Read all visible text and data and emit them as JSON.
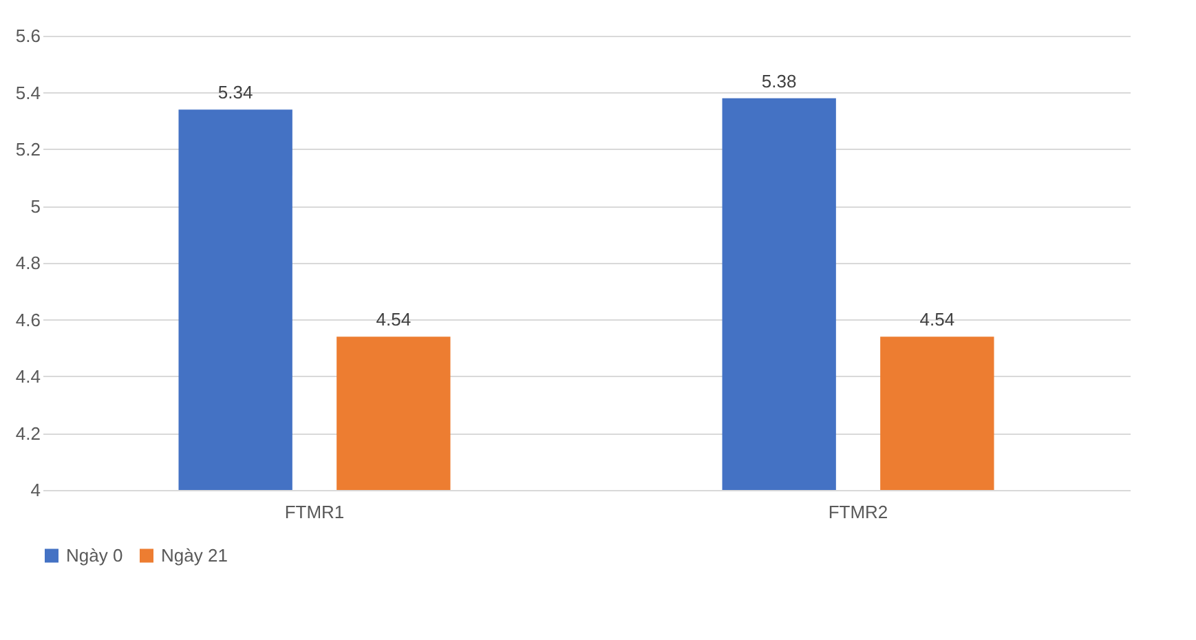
{
  "chart_data": {
    "type": "bar",
    "categories": [
      "FTMR1",
      "FTMR2"
    ],
    "series": [
      {
        "name": "Ngày 0",
        "color": "#4472c4",
        "values": [
          5.34,
          5.38
        ]
      },
      {
        "name": "Ngày 21",
        "color": "#ed7d31",
        "values": [
          4.54,
          4.54
        ]
      }
    ],
    "ylim": [
      4,
      5.6
    ],
    "yticks": [
      4,
      4.2,
      4.4,
      4.6,
      4.8,
      5,
      5.2,
      5.4,
      5.6
    ],
    "grid": "y",
    "legend": "bottom",
    "data_labels": true
  }
}
